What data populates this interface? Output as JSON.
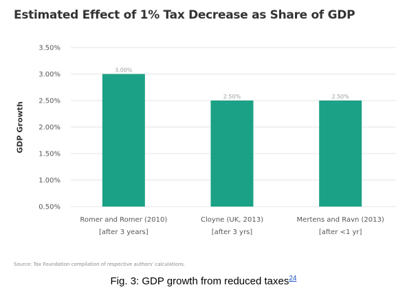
{
  "chart_data": {
    "type": "bar",
    "title": "Estimated Effect of 1% Tax Decrease as Share of GDP",
    "ylabel": "GDP Growth",
    "xlabel": "",
    "ylim": [
      0.5,
      3.5
    ],
    "yticks": [
      "0.50%",
      "1.00%",
      "1.50%",
      "2.00%",
      "2.50%",
      "3.00%",
      "3.50%"
    ],
    "ytick_values": [
      0.5,
      1.0,
      1.5,
      2.0,
      2.5,
      3.0,
      3.5
    ],
    "categories": [
      "Romer and Romer (2010)",
      "Cloyne (UK, 2013)",
      "Mertens and Ravn (2013)"
    ],
    "category_notes": [
      "[after 3 years]",
      "[after 3 yrs]",
      "[after <1 yr]"
    ],
    "values": [
      3.0,
      2.5,
      2.5
    ],
    "value_labels": [
      "3.00%",
      "2.50%",
      "2.50%"
    ],
    "grid": true,
    "bar_color": "#1ba186"
  },
  "source": "Source: Tax Foundation compilation of respective authors' calculations.",
  "caption": {
    "text": "Fig. 3: GDP growth from reduced taxes",
    "ref": "24"
  }
}
